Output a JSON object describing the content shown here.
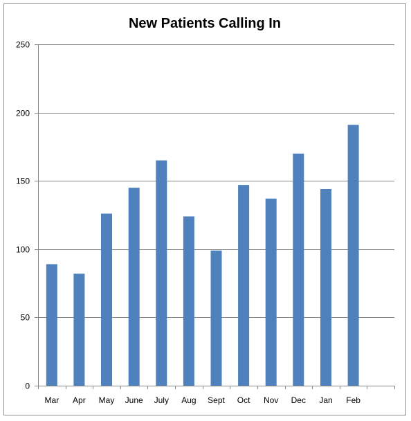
{
  "chart_data": {
    "type": "bar",
    "title": "New Patients Calling In",
    "xlabel": "",
    "ylabel": "",
    "categories": [
      "Mar",
      "Apr",
      "May",
      "June",
      "July",
      "Aug",
      "Sept",
      "Oct",
      "Nov",
      "Dec",
      "Jan",
      "Feb"
    ],
    "series": [
      {
        "values": [
          89,
          82,
          126,
          145,
          165,
          124,
          99,
          147,
          137,
          170,
          144,
          191
        ]
      }
    ],
    "ylim": [
      0,
      250
    ],
    "yticks": [
      0,
      50,
      100,
      150,
      200,
      250
    ],
    "grid": true,
    "legend": "none",
    "bar_color": "#4f81bd",
    "grid_color": "#868686"
  }
}
